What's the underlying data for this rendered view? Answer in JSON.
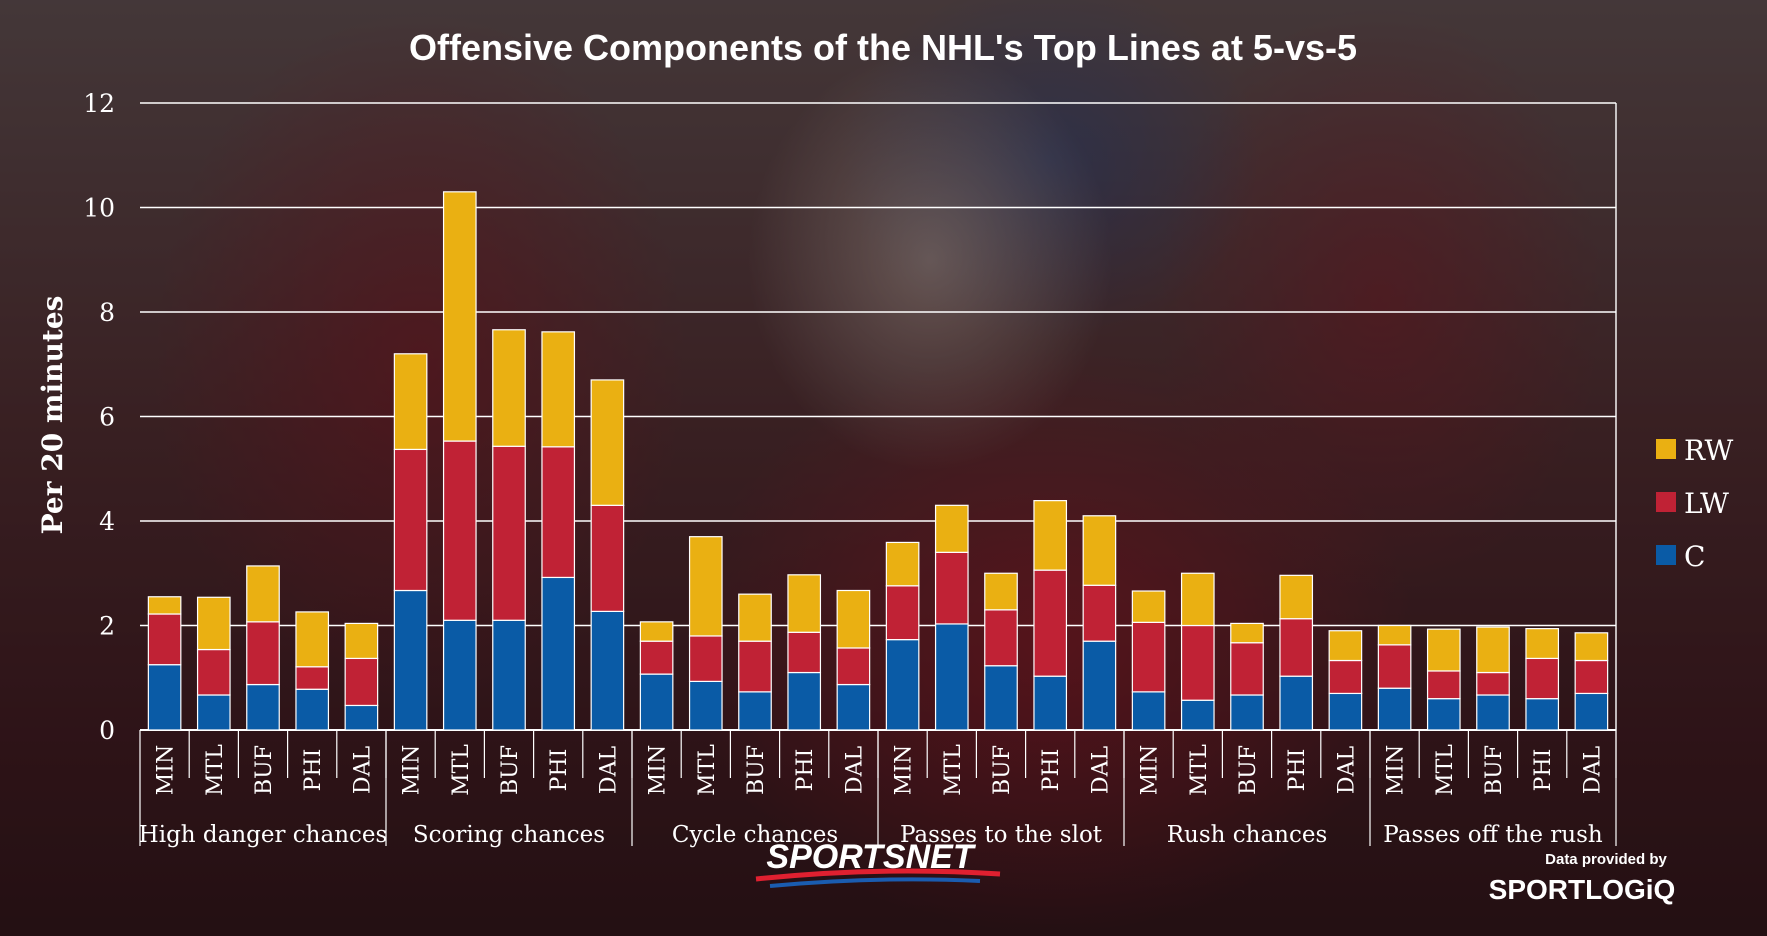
{
  "chart_data": {
    "type": "bar",
    "stacked": true,
    "title": "Offensive Components of the NHL's Top Lines at 5-vs-5",
    "ylabel": "Per 20 minutes",
    "xlabel": "",
    "ylim": [
      0,
      12
    ],
    "yticks": [
      0,
      2,
      4,
      6,
      8,
      10,
      12
    ],
    "grid": true,
    "legend_position": "right",
    "groups": [
      {
        "label": "High danger chances",
        "categories": [
          "MIN",
          "MTL",
          "BUF",
          "PHI",
          "DAL"
        ]
      },
      {
        "label": "Scoring chances",
        "categories": [
          "MIN",
          "MTL",
          "BUF",
          "PHI",
          "DAL"
        ]
      },
      {
        "label": "Cycle chances",
        "categories": [
          "MIN",
          "MTL",
          "BUF",
          "PHI",
          "DAL"
        ]
      },
      {
        "label": "Passes to the slot",
        "categories": [
          "MIN",
          "MTL",
          "BUF",
          "PHI",
          "DAL"
        ]
      },
      {
        "label": "Rush chances",
        "categories": [
          "MIN",
          "MTL",
          "BUF",
          "PHI",
          "DAL"
        ]
      },
      {
        "label": "Passes off the rush",
        "categories": [
          "MIN",
          "MTL",
          "BUF",
          "PHI",
          "DAL"
        ]
      }
    ],
    "series": [
      {
        "name": "C",
        "color": "#0a5ba6",
        "values": [
          1.25,
          0.67,
          0.87,
          0.78,
          0.47,
          2.67,
          2.1,
          2.1,
          2.92,
          2.27,
          1.07,
          0.93,
          0.73,
          1.1,
          0.87,
          1.73,
          2.03,
          1.23,
          1.03,
          1.7,
          0.73,
          0.57,
          0.67,
          1.03,
          0.7,
          0.8,
          0.6,
          0.67,
          0.6,
          0.7
        ]
      },
      {
        "name": "LW",
        "color": "#c02235",
        "values": [
          0.97,
          0.87,
          1.2,
          0.43,
          0.9,
          2.7,
          3.43,
          3.33,
          2.5,
          2.03,
          0.63,
          0.87,
          0.97,
          0.77,
          0.7,
          1.03,
          1.37,
          1.07,
          2.03,
          1.07,
          1.33,
          1.43,
          1.0,
          1.1,
          0.63,
          0.83,
          0.53,
          0.43,
          0.77,
          0.63
        ]
      },
      {
        "name": "RW",
        "color": "#eab012",
        "values": [
          0.33,
          1.0,
          1.07,
          1.05,
          0.67,
          1.83,
          4.77,
          2.23,
          2.2,
          2.4,
          0.37,
          1.9,
          0.9,
          1.1,
          1.1,
          0.83,
          0.9,
          0.7,
          1.33,
          1.33,
          0.6,
          1.0,
          0.37,
          0.83,
          0.57,
          0.37,
          0.8,
          0.87,
          0.57,
          0.53
        ]
      }
    ]
  },
  "branding": {
    "sportsnet": "SPORTSNET",
    "data_provided_by": "Data provided by",
    "sportlogiq": "SPORTLOGiQ"
  }
}
